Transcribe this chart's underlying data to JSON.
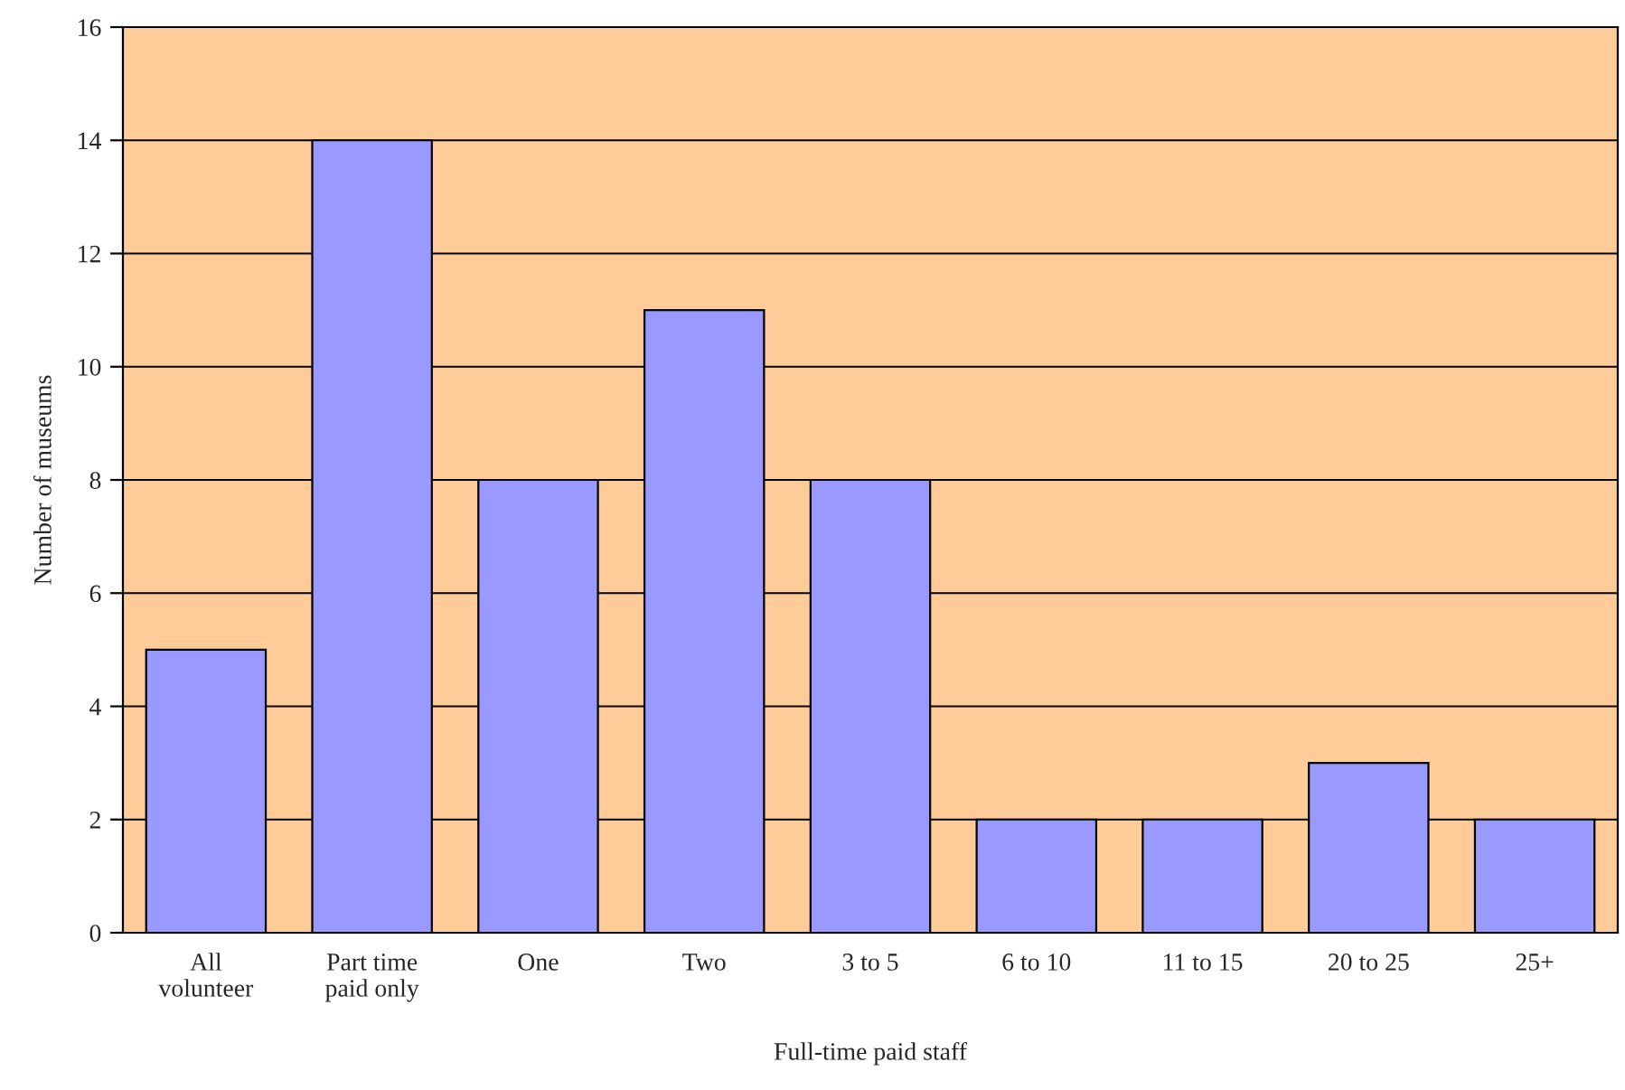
{
  "chart_data": {
    "type": "bar",
    "xlabel": "Full-time paid staff",
    "ylabel": "Number of museums",
    "categories": [
      "All\nvolunteer",
      "Part time\npaid only",
      "One",
      "Two",
      "3 to 5",
      "6 to 10",
      "11 to 15",
      "20 to 25",
      "25+"
    ],
    "values": [
      5,
      14,
      8,
      11,
      8,
      2,
      2,
      3,
      2
    ],
    "color": "#9999ff",
    "ylim": [
      0,
      16
    ],
    "yticks": [
      0,
      2,
      4,
      6,
      8,
      10,
      12,
      14,
      16
    ],
    "grid": "y"
  }
}
